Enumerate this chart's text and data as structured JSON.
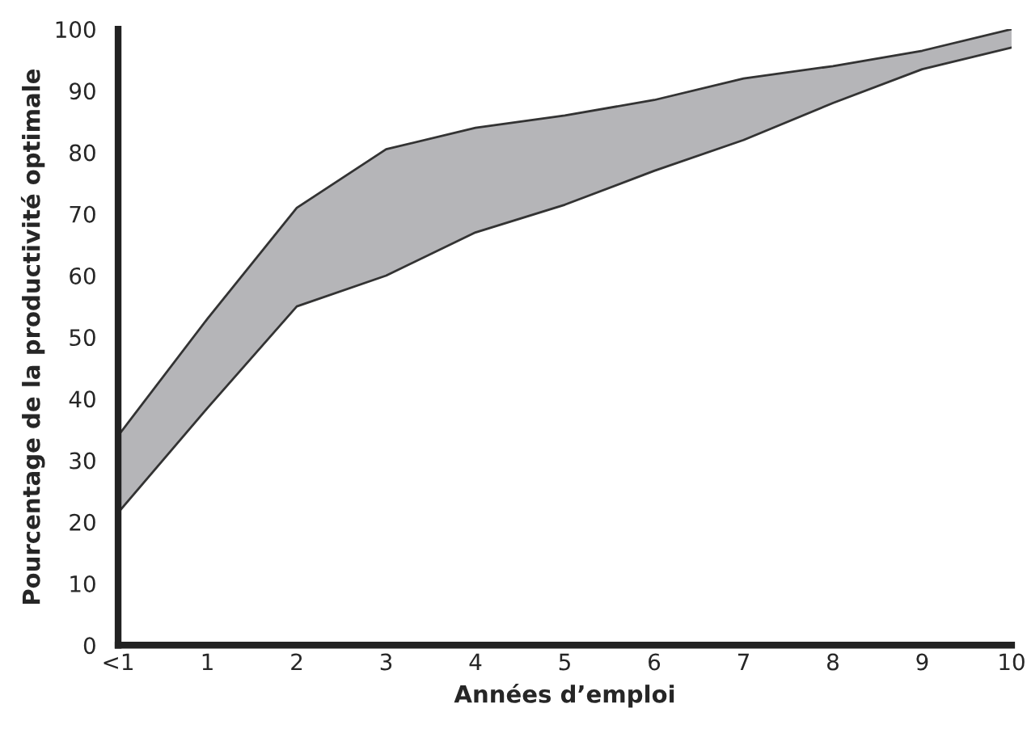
{
  "chart_data": {
    "type": "area",
    "stacked": true,
    "xlabel": "Années d’emploi",
    "ylabel": "Pourcentage de la productivité optimale",
    "categories": [
      "<1",
      "1",
      "2",
      "3",
      "4",
      "5",
      "6",
      "7",
      "8",
      "9",
      "10"
    ],
    "series": [
      {
        "color": "#ffffff",
        "values": [
          21.5,
          38.5,
          55,
          60,
          67,
          71.5,
          77,
          82,
          88,
          93.5,
          97
        ]
      },
      {
        "color": "#b5b5b8",
        "values": [
          12.5,
          14.5,
          16,
          20.5,
          17,
          14.5,
          11.5,
          10,
          6,
          3,
          3
        ]
      }
    ],
    "ylim": [
      0,
      100
    ],
    "yticks": [
      0,
      10,
      20,
      30,
      40,
      50,
      60,
      70,
      80,
      90,
      100
    ],
    "grid": false,
    "legend": false
  }
}
